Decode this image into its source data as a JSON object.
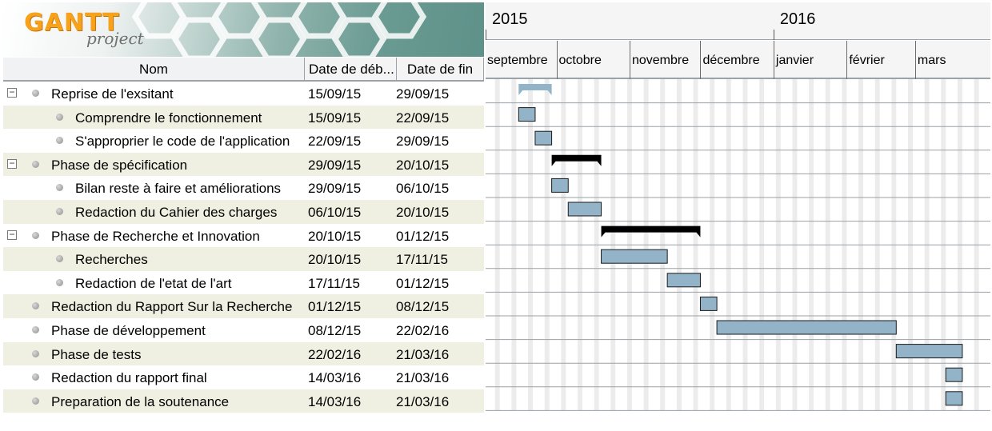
{
  "logo": {
    "word1": "GANTT",
    "word2": "project"
  },
  "table": {
    "headers": {
      "name": "Nom",
      "start": "Date de déb...",
      "end": "Date de fin"
    },
    "tasks": [
      {
        "name": "Reprise de l'exsitant",
        "start": "15/09/15",
        "end": "29/09/15",
        "level": 0,
        "group": true,
        "collapse_symbol": "−"
      },
      {
        "name": "Comprendre le fonctionnement",
        "start": "15/09/15",
        "end": "22/09/15",
        "level": 1,
        "group": false
      },
      {
        "name": "S'approprier le code de l'application",
        "start": "22/09/15",
        "end": "29/09/15",
        "level": 1,
        "group": false
      },
      {
        "name": "Phase de spécification",
        "start": "29/09/15",
        "end": "20/10/15",
        "level": 0,
        "group": true,
        "collapse_symbol": "−"
      },
      {
        "name": "Bilan reste à faire et améliorations",
        "start": "29/09/15",
        "end": "06/10/15",
        "level": 1,
        "group": false
      },
      {
        "name": "Redaction du Cahier des charges",
        "start": "06/10/15",
        "end": "20/10/15",
        "level": 1,
        "group": false
      },
      {
        "name": "Phase de Recherche et Innovation",
        "start": "20/10/15",
        "end": "01/12/15",
        "level": 0,
        "group": true,
        "collapse_symbol": "−"
      },
      {
        "name": "Recherches",
        "start": "20/10/15",
        "end": "17/11/15",
        "level": 1,
        "group": false
      },
      {
        "name": "Redaction de l'etat de l'art",
        "start": "17/11/15",
        "end": "01/12/15",
        "level": 1,
        "group": false
      },
      {
        "name": "Redaction du Rapport Sur la Recherche",
        "start": "01/12/15",
        "end": "08/12/15",
        "level": 0,
        "group": false
      },
      {
        "name": "Phase de développement",
        "start": "08/12/15",
        "end": "22/02/16",
        "level": 0,
        "group": false
      },
      {
        "name": "Phase de tests",
        "start": "22/02/16",
        "end": "21/03/16",
        "level": 0,
        "group": false
      },
      {
        "name": "Redaction du rapport final",
        "start": "14/03/16",
        "end": "21/03/16",
        "level": 0,
        "group": false
      },
      {
        "name": "Preparation de la soutenance",
        "start": "14/03/16",
        "end": "21/03/16",
        "level": 0,
        "group": false
      }
    ]
  },
  "timeline": {
    "years": [
      {
        "label": "2015",
        "date": "2015-09-01"
      },
      {
        "label": "2016",
        "date": "2016-01-01"
      }
    ],
    "months": [
      {
        "label": "septembre",
        "date": "2015-09-01"
      },
      {
        "label": "octobre",
        "date": "2015-10-01"
      },
      {
        "label": "novembre",
        "date": "2015-11-01"
      },
      {
        "label": "décembre",
        "date": "2015-12-01"
      },
      {
        "label": "janvier",
        "date": "2016-01-01"
      },
      {
        "label": "février",
        "date": "2016-02-01"
      },
      {
        "label": "mars",
        "date": "2016-03-01"
      }
    ],
    "visible_range": [
      "2015-09-01",
      "2016-03-31"
    ]
  },
  "colors": {
    "task_bar": "#93b4c8",
    "task_bar_border": "#1a1a1a",
    "summary_first": "#93b4c8",
    "summary_bar": "#000000",
    "row_alt": "#f0f0e2",
    "weekend": "#ececec"
  }
}
